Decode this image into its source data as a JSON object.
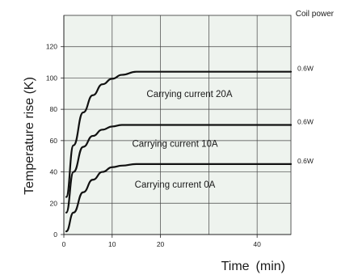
{
  "chart_data": {
    "type": "line",
    "xlabel": "Time (min)",
    "ylabel": "Temperature rise (K)",
    "xlim": [
      0,
      47
    ],
    "ylim": [
      0,
      140
    ],
    "x_ticks": [
      0,
      10,
      20,
      40
    ],
    "y_ticks": [
      0,
      20,
      40,
      60,
      80,
      100,
      120
    ],
    "grid": true,
    "legend_title": "Coil power",
    "series": [
      {
        "name": "Carrying current 20A",
        "end_label": "0.6W",
        "start": 0.5,
        "x": [
          0.5,
          2,
          4,
          6,
          8,
          10,
          12,
          15,
          20,
          30,
          40,
          47
        ],
        "y": [
          24,
          57,
          78,
          89,
          96,
          99.5,
          102,
          104,
          104,
          104,
          104,
          104
        ]
      },
      {
        "name": "Carrying current 10A",
        "end_label": "0.6W",
        "start": 0.5,
        "x": [
          0.5,
          2,
          4,
          6,
          8,
          10,
          12,
          15,
          20,
          30,
          40,
          47
        ],
        "y": [
          14,
          40,
          56,
          63,
          67,
          69,
          70,
          70,
          70,
          70,
          70,
          70
        ]
      },
      {
        "name": "Carrying current  0A",
        "end_label": "0.6W",
        "start": 0.5,
        "x": [
          0.5,
          2,
          4,
          6,
          8,
          10,
          12,
          15,
          20,
          30,
          40,
          47
        ],
        "y": [
          2,
          14,
          27,
          35,
          40,
          43,
          44,
          45,
          45,
          45,
          45,
          45
        ]
      }
    ]
  }
}
